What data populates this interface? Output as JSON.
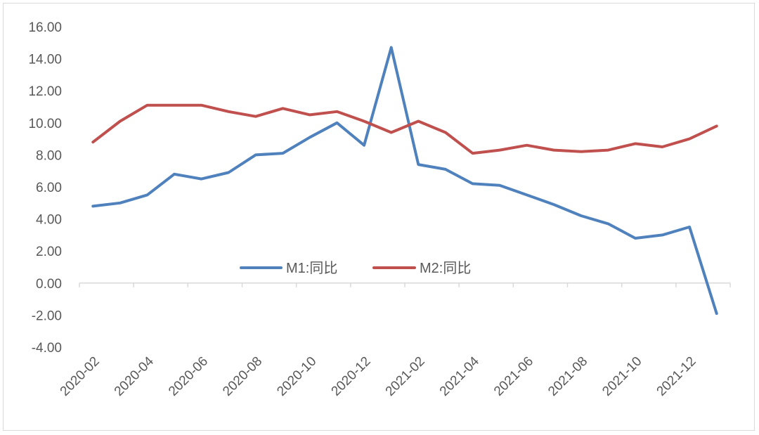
{
  "chart_data": {
    "type": "line",
    "x": [
      "2020-02",
      "2020-03",
      "2020-04",
      "2020-05",
      "2020-06",
      "2020-07",
      "2020-08",
      "2020-09",
      "2020-10",
      "2020-11",
      "2020-12",
      "2021-01",
      "2021-02",
      "2021-03",
      "2021-04",
      "2021-05",
      "2021-06",
      "2021-07",
      "2021-08",
      "2021-09",
      "2021-10",
      "2021-11",
      "2021-12",
      "2022-01"
    ],
    "x_tick_labels": [
      "2020-02",
      "2020-04",
      "2020-06",
      "2020-08",
      "2020-10",
      "2020-12",
      "2021-02",
      "2021-04",
      "2021-06",
      "2021-08",
      "2021-10",
      "2021-12"
    ],
    "y_tick_labels": [
      "16.00",
      "14.00",
      "12.00",
      "10.00",
      "8.00",
      "6.00",
      "4.00",
      "2.00",
      "0.00",
      "-2.00",
      "-4.00"
    ],
    "ylim": [
      -4,
      16
    ],
    "series": [
      {
        "name": "M1:同比",
        "color": "#4f81bd",
        "values": [
          4.8,
          5.0,
          5.5,
          6.8,
          6.5,
          6.9,
          8.0,
          8.1,
          9.1,
          10.0,
          8.6,
          14.7,
          7.4,
          7.1,
          6.2,
          6.1,
          5.5,
          4.9,
          4.2,
          3.7,
          2.8,
          3.0,
          3.5,
          -1.9
        ]
      },
      {
        "name": "M2:同比",
        "color": "#c0504d",
        "values": [
          8.8,
          10.1,
          11.1,
          11.1,
          11.1,
          10.7,
          10.4,
          10.9,
          10.5,
          10.7,
          10.1,
          9.4,
          10.1,
          9.4,
          8.1,
          8.3,
          8.6,
          8.3,
          8.2,
          8.3,
          8.7,
          8.5,
          9.0,
          9.8
        ]
      }
    ],
    "legend_position": "center",
    "grid": false
  }
}
